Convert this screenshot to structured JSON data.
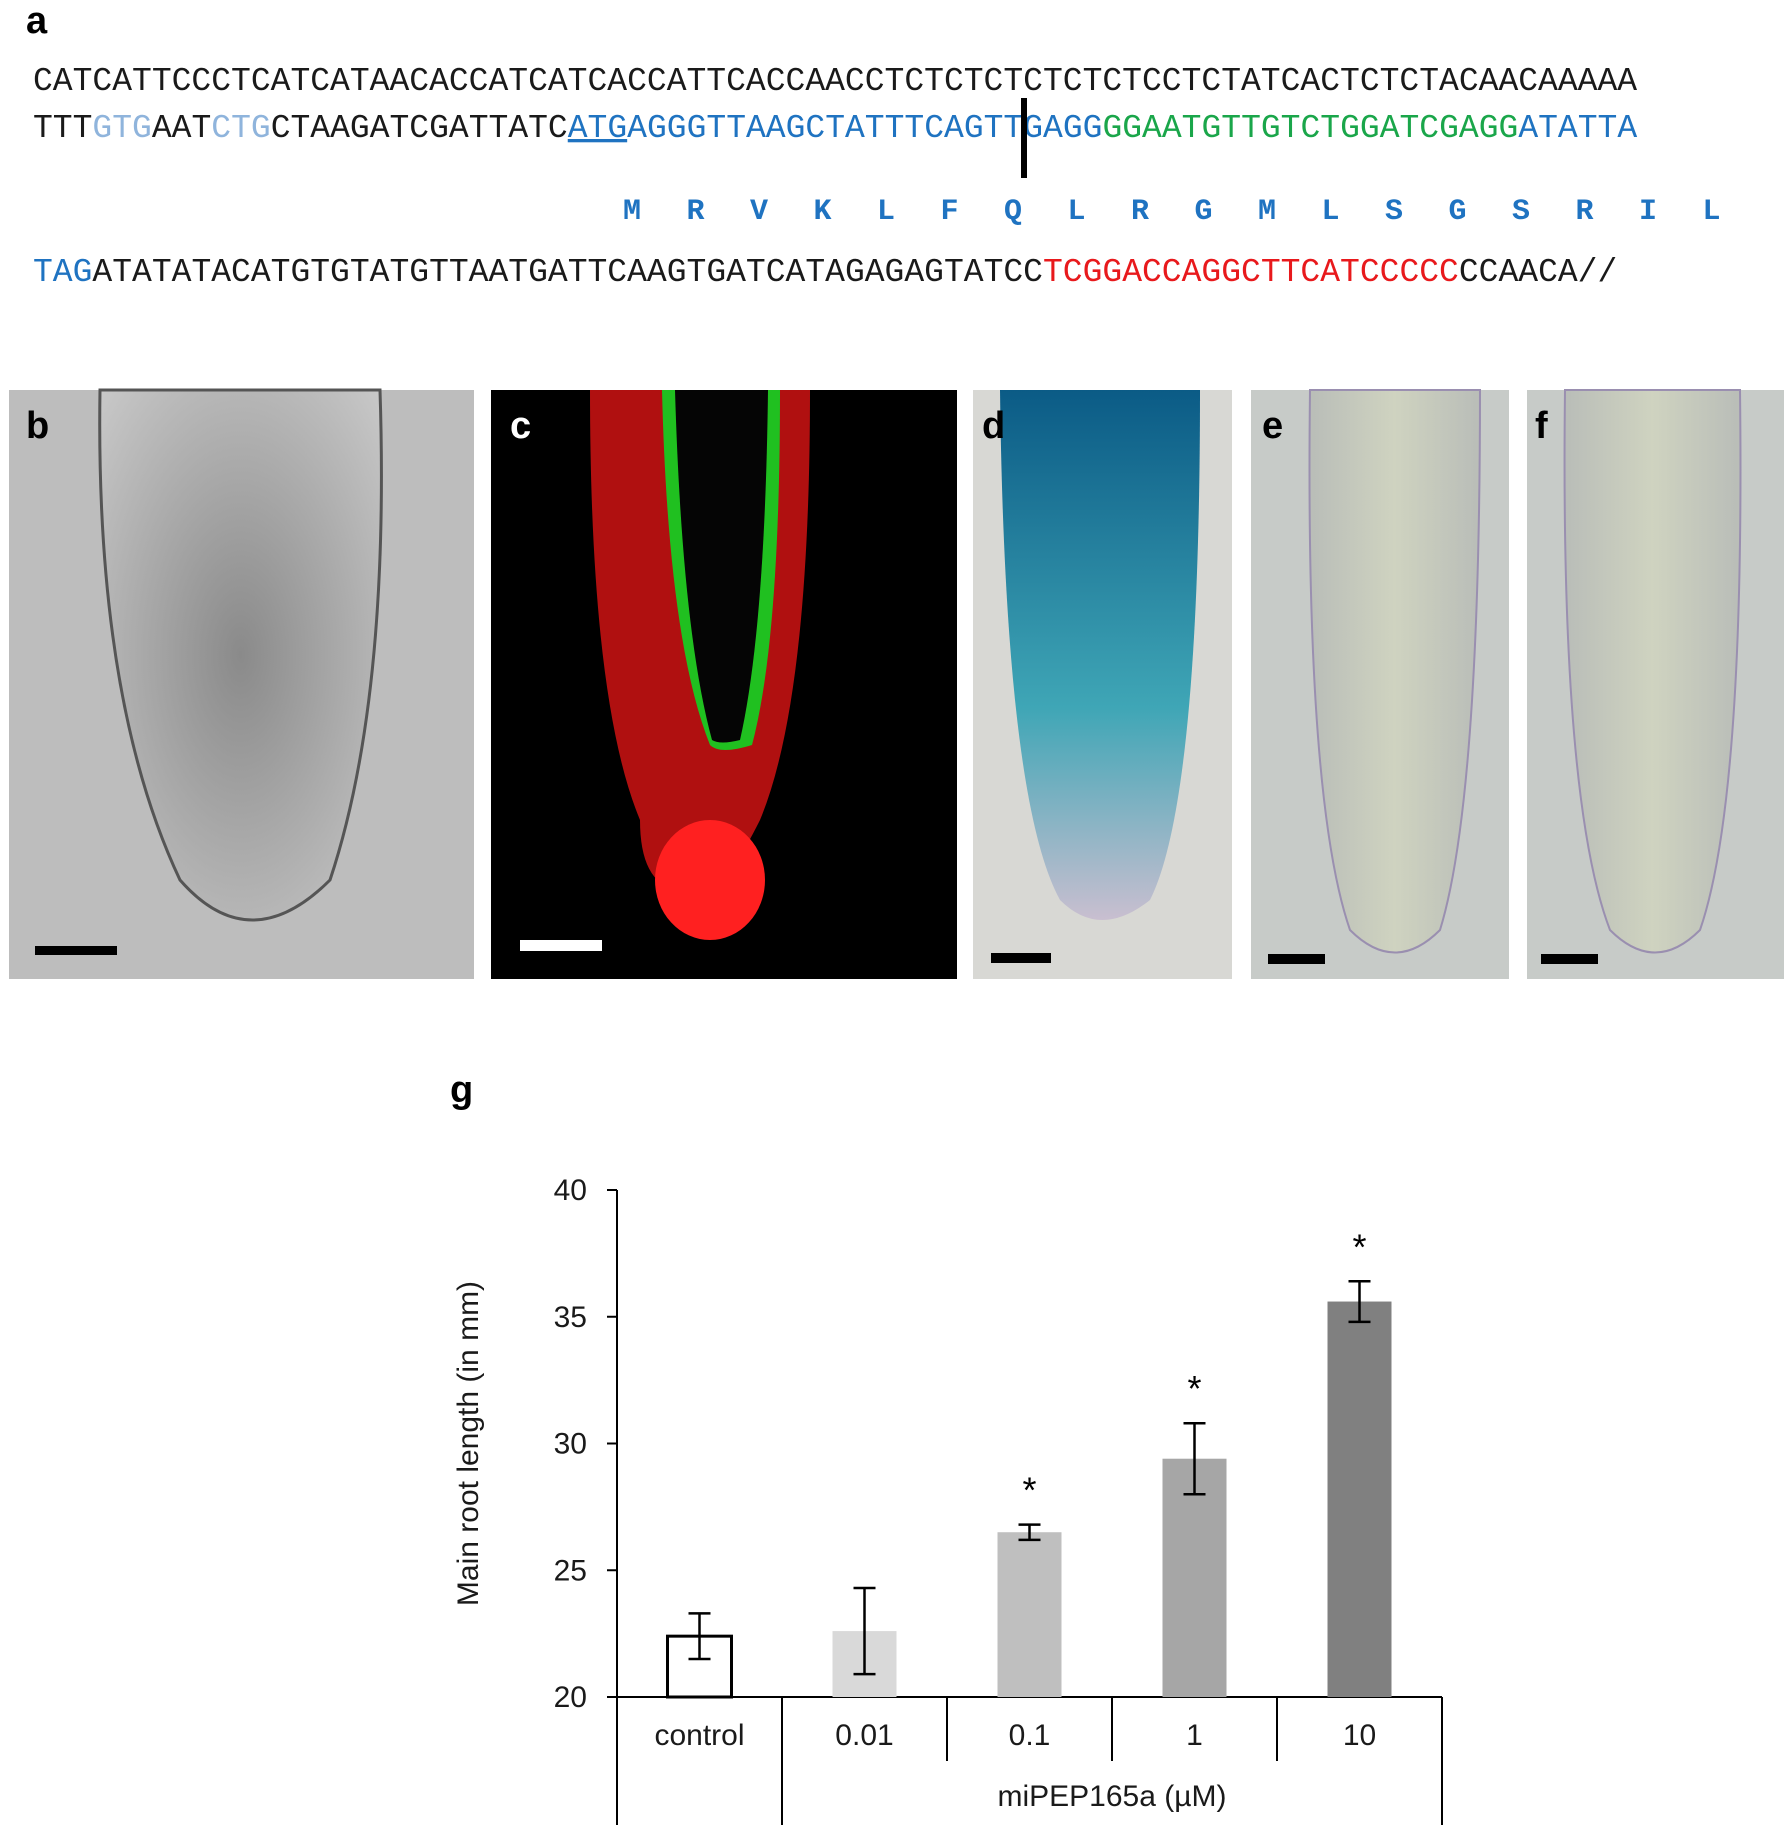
{
  "panel_labels": [
    "a",
    "b",
    "c",
    "d",
    "e",
    "f",
    "g"
  ],
  "sequence": {
    "lines": [
      [
        {
          "text": "CATCATTCCCTCATCATAACACCATCATCACCATTCACCAACCTCTCTCTCTCTCTCCTCTATCACTCTCTACAACAAAAA",
          "color": "#1a1a1a"
        }
      ],
      [
        {
          "text": "TTT",
          "color": "#1a1a1a"
        },
        {
          "text": "GTG",
          "color": "#8fb4dc"
        },
        {
          "text": "AAT",
          "color": "#1a1a1a"
        },
        {
          "text": "CTG",
          "color": "#8fb4dc"
        },
        {
          "text": "CTAAGATCGATTATC",
          "color": "#1a1a1a"
        },
        {
          "text": "ATG",
          "color": "#1f73c1",
          "underline": true
        },
        {
          "text": "AGGGTTAAGCTATTTCAGTTGAGG",
          "color": "#1f73c1"
        },
        {
          "text": "GGAATGTTGTCTGGATCGAGG",
          "color": "#1aa64a"
        },
        {
          "text": "ATATTA",
          "color": "#1f73c1"
        }
      ],
      [
        {
          "text": "TAG",
          "color": "#1f73c1"
        },
        {
          "text": "ATATATACATGTGTATGTTAATGATTCAAGTGATCATAGAGAGTATCC",
          "color": "#1a1a1a"
        },
        {
          "text": "TCGGACCAGGCTTCATCCCCC",
          "color": "#e8191c"
        },
        {
          "text": "CCAACA//",
          "color": "#1a1a1a"
        }
      ]
    ],
    "amino_acids": [
      "M",
      "R",
      "V",
      "K",
      "L",
      "F",
      "Q",
      "L",
      "R",
      "G",
      "M",
      "L",
      "S",
      "G",
      "S",
      "R",
      "I",
      "L"
    ]
  },
  "chart_data": {
    "type": "bar",
    "categories": [
      "control",
      "0.01",
      "0.1",
      "1",
      "10"
    ],
    "values": [
      22.4,
      22.6,
      26.5,
      29.4,
      35.6
    ],
    "errors": [
      0.9,
      1.7,
      0.3,
      1.4,
      0.8
    ],
    "colors": [
      "#ffffff",
      "#d9d9d9",
      "#bfbfbf",
      "#a6a6a6",
      "#808080"
    ],
    "significance": [
      null,
      null,
      "*",
      "*",
      "*"
    ],
    "ylabel": "Main root length (in mm)",
    "xlabel": "miPEP165a (µM)",
    "ylim": [
      20,
      40
    ],
    "yticks": [
      20,
      25,
      30,
      35,
      40
    ]
  }
}
